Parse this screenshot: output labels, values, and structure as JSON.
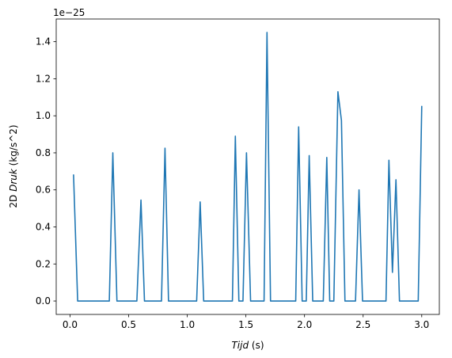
{
  "chart_data": {
    "type": "line",
    "title": "",
    "xlabel_italic": "Tijd",
    "xlabel_rest": " (s)",
    "ylabel_prefix": "2D ",
    "ylabel_italic": "Druk",
    "ylabel_rest": " (kg/s^2)",
    "y_scale_label": "1e−25",
    "xlim": [
      -0.118,
      3.15
    ],
    "ylim": [
      -0.0725,
      1.5225
    ],
    "x_ticks": [
      0.0,
      0.5,
      1.0,
      1.5,
      2.0,
      2.5,
      3.0
    ],
    "x_tick_labels": [
      "0.0",
      "0.5",
      "1.0",
      "1.5",
      "2.0",
      "2.5",
      "3.0"
    ],
    "y_ticks": [
      0.0,
      0.2,
      0.4,
      0.6,
      0.8,
      1.0,
      1.2,
      1.4
    ],
    "y_tick_labels": [
      "0.0",
      "0.2",
      "0.4",
      "0.6",
      "0.8",
      "1.0",
      "1.2",
      "1.4"
    ],
    "grid": false,
    "series": [
      {
        "color": "#1f77b4",
        "x": [
          0.03,
          0.065,
          0.335,
          0.365,
          0.4,
          0.57,
          0.605,
          0.635,
          0.78,
          0.81,
          0.84,
          1.08,
          1.11,
          1.14,
          1.385,
          1.41,
          1.44,
          1.475,
          1.505,
          1.54,
          1.655,
          1.68,
          1.71,
          1.925,
          1.95,
          1.98,
          2.015,
          2.04,
          2.07,
          2.16,
          2.19,
          2.215,
          2.25,
          2.285,
          2.315,
          2.345,
          2.435,
          2.465,
          2.495,
          2.695,
          2.72,
          2.75,
          2.78,
          2.81,
          2.97,
          3.0
        ],
        "y": [
          0.68,
          0.0,
          0.0,
          0.8,
          0.0,
          0.0,
          0.545,
          0.0,
          0.0,
          0.825,
          0.0,
          0.0,
          0.535,
          0.0,
          0.0,
          0.89,
          0.0,
          0.0,
          0.8,
          0.0,
          0.0,
          1.45,
          0.0,
          0.0,
          0.94,
          0.0,
          0.0,
          0.785,
          0.0,
          0.0,
          0.775,
          0.0,
          0.0,
          1.13,
          0.975,
          0.0,
          0.0,
          0.6,
          0.0,
          0.0,
          0.76,
          0.155,
          0.655,
          0.0,
          0.0,
          1.05
        ]
      }
    ]
  }
}
